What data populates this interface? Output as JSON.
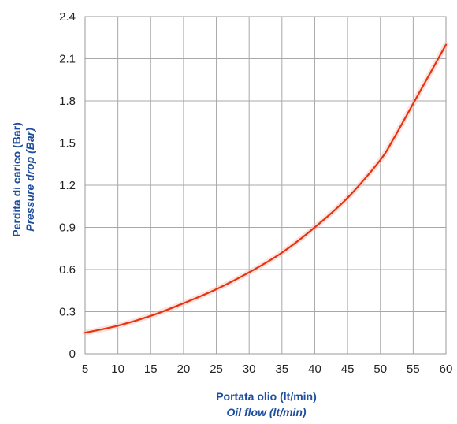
{
  "chart_data": {
    "type": "line",
    "title": "",
    "xlabel": "Portata olio (lt/min)",
    "xlabel_en": "Oil flow (lt/min)",
    "ylabel": "Perdita di carico (Bar)",
    "ylabel_en": "Pressure drop (Bar)",
    "xlim": [
      5,
      60
    ],
    "ylim": [
      0,
      2.4
    ],
    "x_ticks": [
      5,
      10,
      15,
      20,
      25,
      30,
      35,
      40,
      45,
      50,
      55,
      60
    ],
    "x_tick_labels": [
      "5",
      "10",
      "15",
      "20",
      "25",
      "30",
      "35",
      "40",
      "45",
      "50",
      "55",
      "60"
    ],
    "y_ticks": [
      0,
      0.3,
      0.6,
      0.9,
      1.2,
      1.5,
      1.8,
      2.1,
      2.4
    ],
    "y_tick_labels": [
      "0",
      "0.3",
      "0.6",
      "0.9",
      "1.2",
      "1.5",
      "1.8",
      "2.1",
      "2.4"
    ],
    "grid": true,
    "legend": "none",
    "series": [
      {
        "color": "#e8320f",
        "x": [
          5,
          10,
          15,
          20,
          25,
          30,
          35,
          40,
          45,
          50,
          52,
          55,
          60
        ],
        "y": [
          0.15,
          0.2,
          0.27,
          0.36,
          0.46,
          0.58,
          0.72,
          0.9,
          1.11,
          1.38,
          1.53,
          1.78,
          2.2
        ]
      }
    ]
  }
}
